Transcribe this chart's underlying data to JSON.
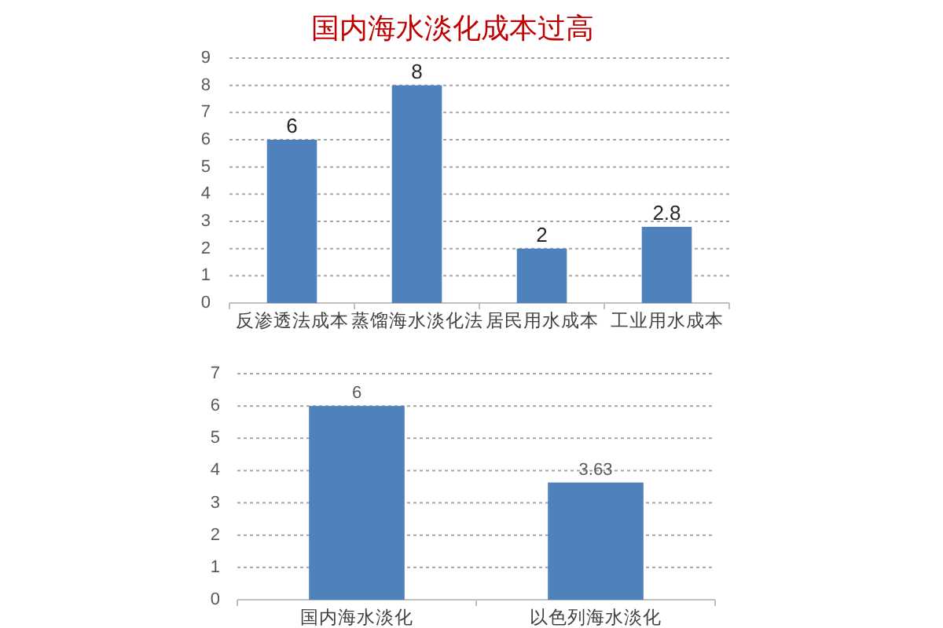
{
  "chart_data": [
    {
      "type": "bar",
      "title": "国内海水淡化成本过高",
      "categories": [
        "反渗透法成本",
        "蒸馏海水淡化法",
        "居民用水成本",
        "工业用水成本"
      ],
      "values": [
        6,
        8,
        2,
        2.8
      ],
      "color": "#4f81bd",
      "ylim": [
        0,
        9
      ],
      "yticks": [
        0,
        1,
        2,
        3,
        4,
        5,
        6,
        7,
        8,
        9
      ],
      "grid": "y",
      "data_labels": true
    },
    {
      "type": "bar",
      "categories": [
        "国内海水淡化",
        "以色列海水淡化"
      ],
      "values": [
        6,
        3.63
      ],
      "color": "#4f81bd",
      "ylim": [
        0,
        7
      ],
      "yticks": [
        0,
        1,
        2,
        3,
        4,
        5,
        6,
        7
      ],
      "grid": "y",
      "data_labels": true
    }
  ]
}
